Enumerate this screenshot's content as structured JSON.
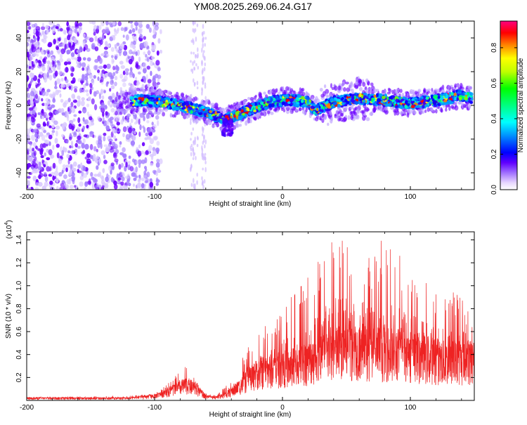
{
  "title": "YM08.2025.269.06.24.G17",
  "colors": {
    "snr_line": "#ee2222",
    "axis": "#000000"
  },
  "chart_data": [
    {
      "type": "heatmap",
      "name": "spectrogram",
      "xlabel": "Height of straight line (km)",
      "ylabel": "Frequency (Hz)",
      "xlim": [
        -200,
        150
      ],
      "ylim": [
        -50,
        50
      ],
      "xticks": [
        -200,
        -100,
        0,
        100
      ],
      "xtick_labels": [
        "-200",
        "-100",
        "0",
        "100"
      ],
      "yticks": [
        -40,
        -20,
        0,
        20,
        40
      ],
      "ytick_labels": [
        "-40",
        "-20",
        "0",
        "20",
        "40"
      ],
      "ridge": {
        "x": [
          -130,
          -110,
          -95,
          -80,
          -70,
          -60,
          -50,
          -45,
          -40,
          -30,
          -20,
          -10,
          0,
          10,
          20,
          25,
          40,
          60,
          80,
          100,
          120,
          140,
          148
        ],
        "y": [
          2,
          3,
          2,
          0,
          -2,
          -4,
          -7,
          -8,
          -7,
          -4,
          -1,
          2,
          3,
          3,
          2,
          -3,
          2,
          4,
          3,
          1,
          3,
          6,
          4
        ]
      },
      "noise_region_x": [
        -200,
        -100
      ],
      "colorbar": {
        "label": "Normalized spectral amplitude",
        "range": [
          0,
          0.95
        ],
        "ticks": [
          0.0,
          0.2,
          0.4,
          0.6,
          0.8
        ],
        "tick_labels": [
          "0.0",
          "0.2",
          "0.4",
          "0.6",
          "0.8"
        ]
      }
    },
    {
      "type": "line",
      "name": "snr",
      "xlabel": "Height of straight line (km)",
      "ylabel": "SNR (10 * v/v)",
      "y_scale_label_base": "(x10",
      "y_scale_label_exp": "4",
      "y_scale_label_close": ")",
      "xlim": [
        -200,
        150
      ],
      "ylim": [
        0,
        1.47
      ],
      "xticks": [
        -200,
        -100,
        0,
        100
      ],
      "xtick_labels": [
        "-200",
        "-100",
        "0",
        "100"
      ],
      "yticks": [
        0.2,
        0.4,
        0.6,
        0.8,
        1.0,
        1.2,
        1.4
      ],
      "ytick_labels": [
        "0.2",
        "0.4",
        "0.6",
        "0.8",
        "1.0",
        "1.2",
        "1.4"
      ],
      "envelope": {
        "x": [
          -200,
          -120,
          -100,
          -95,
          -90,
          -85,
          -80,
          -75,
          -70,
          -65,
          -60,
          -55,
          -50,
          -45,
          -40,
          -35,
          -30,
          -25,
          -20,
          -10,
          0,
          10,
          20,
          30,
          40,
          50,
          60,
          70,
          80,
          90,
          100,
          110,
          120,
          130,
          140,
          150
        ],
        "mean": [
          0.02,
          0.02,
          0.04,
          0.06,
          0.08,
          0.1,
          0.12,
          0.14,
          0.12,
          0.08,
          0.04,
          0.03,
          0.03,
          0.05,
          0.08,
          0.12,
          0.16,
          0.2,
          0.25,
          0.28,
          0.3,
          0.32,
          0.36,
          0.4,
          0.46,
          0.48,
          0.48,
          0.46,
          0.46,
          0.44,
          0.43,
          0.4,
          0.38,
          0.35,
          0.36,
          0.38
        ],
        "peak": [
          0.03,
          0.04,
          0.06,
          0.1,
          0.15,
          0.2,
          0.26,
          0.3,
          0.24,
          0.12,
          0.06,
          0.05,
          0.06,
          0.12,
          0.2,
          0.3,
          0.4,
          0.5,
          0.6,
          0.7,
          0.8,
          0.95,
          1.1,
          1.3,
          1.45,
          1.4,
          1.35,
          1.3,
          1.45,
          1.3,
          1.2,
          1.05,
          1.0,
          1.0,
          0.95,
          0.7
        ]
      },
      "series": [
        {
          "name": "SNR"
        }
      ]
    }
  ]
}
